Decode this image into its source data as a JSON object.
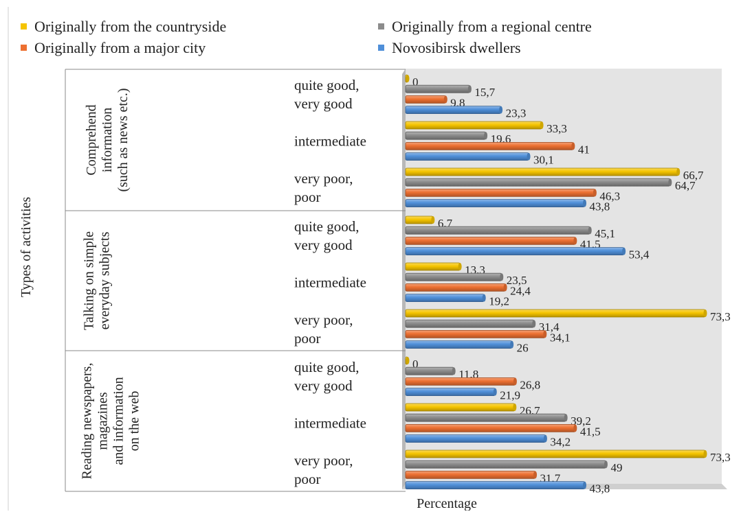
{
  "chart_data": {
    "type": "bar",
    "orientation": "horizontal",
    "title": "",
    "xlabel": "Percentage",
    "ylabel": "Types of activities",
    "xlim": [
      0,
      80
    ],
    "grid": false,
    "legend_position": "top",
    "colors": {
      "countryside": "#f5c400",
      "regional": "#8c8c8c",
      "major_city": "#ed7031",
      "novosibirsk": "#4f8fd9",
      "plot_background": "#e4e4e4"
    },
    "series": [
      {
        "key": "countryside",
        "name": "Originally from the countryside"
      },
      {
        "key": "regional",
        "name": "Originally from a regional centre"
      },
      {
        "key": "major_city",
        "name": "Originally from a major city"
      },
      {
        "key": "novosibirsk",
        "name": "Novosibirsk dwellers"
      }
    ],
    "groups": [
      {
        "label_lines": [
          "Comprehend",
          "information",
          "(such as news etc.)"
        ],
        "categories": [
          {
            "label_lines": [
              "quite good,",
              "very good"
            ],
            "values": [
              0,
              15.7,
              9.8,
              23.3
            ],
            "labels": [
              "0",
              "15,7",
              "9,8",
              "23,3"
            ]
          },
          {
            "label_lines": [
              "intermediate"
            ],
            "values": [
              33.3,
              19.6,
              41,
              30.1
            ],
            "labels": [
              "33,3",
              "19,6",
              "41",
              "30,1"
            ]
          },
          {
            "label_lines": [
              "very poor,",
              "poor"
            ],
            "values": [
              66.7,
              64.7,
              46.3,
              43.8
            ],
            "labels": [
              "66,7",
              "64,7",
              "46,3",
              "43,8"
            ]
          }
        ]
      },
      {
        "label_lines": [
          "Talking on simple",
          "everyday subjects"
        ],
        "categories": [
          {
            "label_lines": [
              "quite good,",
              "very good"
            ],
            "values": [
              6.7,
              45.1,
              41.5,
              53.4
            ],
            "labels": [
              "6,7",
              "45,1",
              "41,5",
              "53,4"
            ]
          },
          {
            "label_lines": [
              "intermediate"
            ],
            "values": [
              13.3,
              23.5,
              24.4,
              19.2
            ],
            "labels": [
              "13,3",
              "23,5",
              "24,4",
              "19,2"
            ]
          },
          {
            "label_lines": [
              "very poor,",
              "poor"
            ],
            "values": [
              73.3,
              31.4,
              34.1,
              26
            ],
            "labels": [
              "73,3",
              "31,4",
              "34,1",
              "26"
            ]
          }
        ]
      },
      {
        "label_lines": [
          "Reading newspapers,",
          "magazines",
          "and information",
          "on the web"
        ],
        "categories": [
          {
            "label_lines": [
              "quite good,",
              "very good"
            ],
            "values": [
              0,
              11.8,
              26.8,
              21.9
            ],
            "labels": [
              "0",
              "11,8",
              "26,8",
              "21,9"
            ]
          },
          {
            "label_lines": [
              "intermediate"
            ],
            "values": [
              26.7,
              39.2,
              41.5,
              34.2
            ],
            "labels": [
              "26,7",
              "39,2",
              "41,5",
              "34,2"
            ]
          },
          {
            "label_lines": [
              "very poor,",
              "poor"
            ],
            "values": [
              73.3,
              49,
              31.7,
              43.8
            ],
            "labels": [
              "73,3",
              "49",
              "31,7",
              "43,8"
            ]
          }
        ]
      }
    ]
  }
}
